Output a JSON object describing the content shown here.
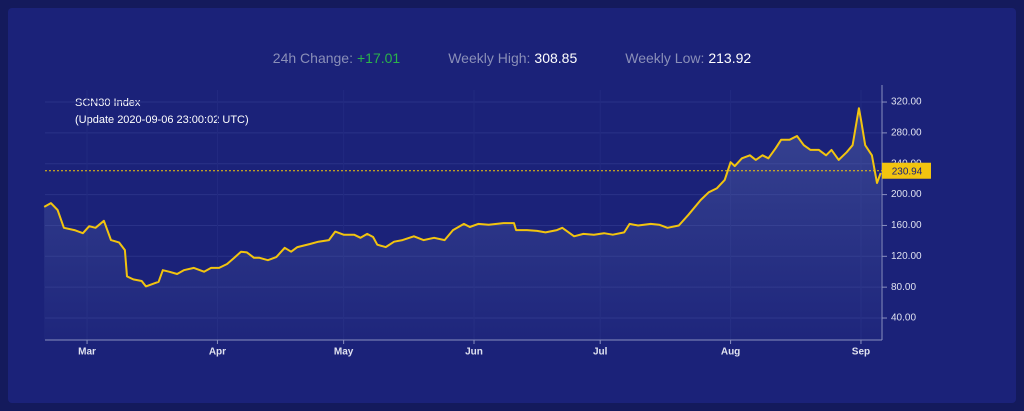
{
  "stats": [
    {
      "label": "24h Change:",
      "value": "+17.01",
      "color": "#2bb34a"
    },
    {
      "label": "Weekly High:",
      "value": "308.85",
      "color": "#ffffff"
    },
    {
      "label": "Weekly Low:",
      "value": "213.92",
      "color": "#ffffff"
    }
  ],
  "chart_data": {
    "type": "line",
    "title": "SCN30 Index",
    "subtitle": "(Update 2020-09-06 23:00:02 UTC)",
    "color": "#f2c40f",
    "x": [
      50.8,
      52.4,
      54,
      55.5,
      58,
      60,
      61.5,
      63,
      65,
      66.7,
      68.6,
      70,
      70.5,
      72,
      74,
      75,
      77,
      78,
      79,
      80.5,
      82.4,
      84,
      86.4,
      88.8,
      90.5,
      92.4,
      94.3,
      96,
      97.6,
      99,
      100.7,
      102,
      104,
      106,
      108,
      109.5,
      111,
      114,
      116,
      118.5,
      120,
      122,
      124.5,
      126,
      127.6,
      129,
      130,
      132,
      134,
      136,
      138.7,
      141,
      143.5,
      146,
      148,
      150.6,
      152,
      154,
      156.5,
      160,
      162.5,
      163,
      165.6,
      168,
      170,
      172.7,
      174,
      176.8,
      179,
      181.5,
      183.9,
      186,
      188.7,
      190,
      192,
      195,
      197,
      199,
      201.7,
      204,
      206.9,
      208.8,
      210.7,
      212.6,
      214,
      215,
      216.7,
      218.6,
      220,
      221.6,
      223,
      224.7,
      226,
      228,
      229.8,
      231.4,
      233,
      235,
      236.7,
      238,
      239.7,
      241.6,
      243,
      244.5,
      245,
      246,
      247.6,
      248.8,
      249.7
    ],
    "values": [
      184,
      189,
      180,
      157,
      154,
      150,
      159,
      157,
      166,
      141,
      138,
      128,
      94,
      90,
      88,
      81,
      85,
      87,
      102,
      100,
      97,
      102,
      105,
      100,
      105,
      105,
      110,
      118,
      126,
      125,
      118,
      118,
      115,
      119,
      131,
      126,
      132,
      136,
      139,
      141,
      152,
      148,
      148,
      144,
      149,
      145,
      135,
      132,
      139,
      141,
      146,
      141,
      144,
      141,
      154,
      162,
      158,
      162,
      161,
      163,
      163,
      154,
      154,
      153,
      151,
      154,
      157,
      146,
      149,
      148,
      150,
      148,
      151,
      162,
      160,
      162,
      161,
      157,
      160,
      174,
      193,
      203,
      208,
      219,
      242,
      237,
      247,
      251,
      245,
      251,
      247,
      260,
      271,
      271,
      276,
      264,
      258,
      258,
      251,
      258,
      245,
      255,
      264,
      312,
      297,
      264,
      251,
      215,
      228
    ],
    "current_value": 230.94,
    "xlim": [
      51,
      250
    ],
    "xticks": [
      {
        "value": 61,
        "label": "Mar"
      },
      {
        "value": 92,
        "label": "Apr"
      },
      {
        "value": 122,
        "label": "May"
      },
      {
        "value": 153,
        "label": "Jun"
      },
      {
        "value": 183,
        "label": "Jul"
      },
      {
        "value": 214,
        "label": "Aug"
      },
      {
        "value": 245,
        "label": "Sep"
      }
    ],
    "ylim": [
      11.5,
      335.6
    ],
    "yticks": [
      {
        "value": 40,
        "label": "40.00"
      },
      {
        "value": 80,
        "label": "80.00"
      },
      {
        "value": 120,
        "label": "120.00"
      },
      {
        "value": 160,
        "label": "160.00"
      },
      {
        "value": 200,
        "label": "200.00"
      },
      {
        "value": 240,
        "label": "240.00"
      },
      {
        "value": 280,
        "label": "280.00"
      },
      {
        "value": 320,
        "label": "320.00"
      }
    ],
    "grid": true
  }
}
